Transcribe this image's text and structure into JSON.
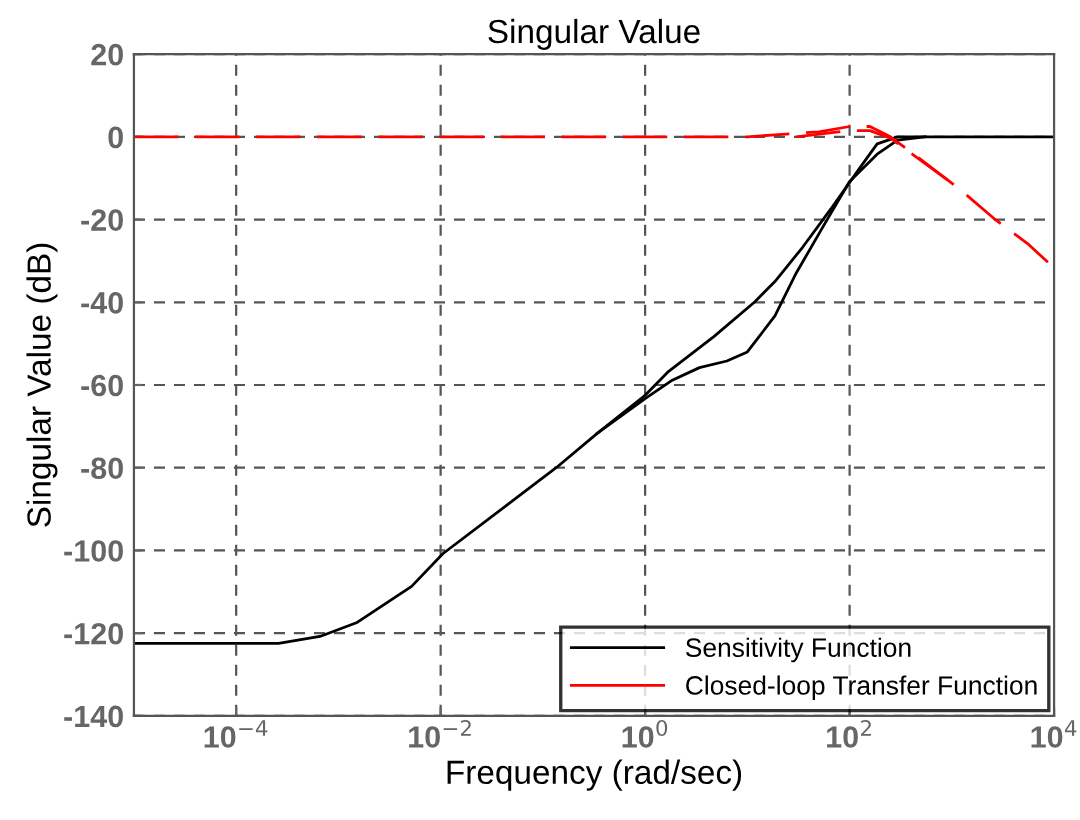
{
  "chart_data": {
    "type": "line",
    "title": "Singular Value",
    "xlabel": "Frequency (rad/sec)",
    "ylabel": "Singular Value (dB)",
    "log": "x",
    "grid": true,
    "legend": "bottom right",
    "xlim": [
      1e-05,
      10000
    ],
    "ylim": [
      -140,
      20
    ],
    "xticks": [
      {
        "value": 0.0001,
        "label": "10$^{−4}$"
      },
      {
        "value": 0.01,
        "label": "10$^{−2}$"
      },
      {
        "value": 1,
        "label": "10$^{0}$"
      },
      {
        "value": 100,
        "label": "10$^{2}$"
      },
      {
        "value": 10000,
        "label": "10$^{4}$"
      }
    ],
    "yticks": [
      -140,
      -120,
      -100,
      -80,
      -60,
      -40,
      -20,
      0,
      20
    ],
    "series": [
      {
        "name": "Sensitivity Function",
        "color": "#000000",
        "line_style": "solid",
        "x": [
          1e-05,
          0.00026,
          0.00066,
          0.0015,
          0.0052,
          0.0105,
          0.135,
          0.34,
          1,
          1.7,
          4.7,
          11.7,
          18.6,
          34.7,
          69,
          126,
          186,
          295,
          10000
        ],
        "values": [
          -122.5,
          -122.5,
          -120.8,
          -117.5,
          -108.7,
          -100.8,
          -80,
          -71.7,
          -62.5,
          -56.7,
          -48.3,
          -40,
          -35,
          -26.7,
          -16.7,
          -7.5,
          -1.7,
          0,
          0
        ]
      },
      {
        "color": "#000000",
        "line_style": "solid",
        "x": [
          0.34,
          1,
          1.8,
          3.4,
          6.3,
          10,
          18.6,
          29.5,
          55,
          100,
          186,
          295,
          550
        ],
        "values": [
          -71.7,
          -63.3,
          -59,
          -55.8,
          -54.2,
          -52,
          -43.3,
          -33.3,
          -21.7,
          -10.8,
          -4.2,
          -0.8,
          0
        ]
      },
      {
        "name": "Closed-loop Transfer Function",
        "color": "#ff0000",
        "line_style": "dashed",
        "x": [
          1e-05,
          10,
          18.6,
          50,
          100,
          158,
          251,
          468,
          1175,
          2570,
          5500,
          10000
        ],
        "values": [
          0,
          0,
          0.5,
          1.2,
          2.5,
          2.5,
          0,
          -5,
          -12.5,
          -19.7,
          -25.8,
          -31.7
        ]
      },
      {
        "color": "#ff0000",
        "line_style": "dashed",
        "x": [
          30,
          100,
          158,
          251,
          400,
          1175
        ],
        "values": [
          0,
          1.5,
          1.5,
          -0.3,
          -4,
          -12.5
        ]
      }
    ]
  }
}
